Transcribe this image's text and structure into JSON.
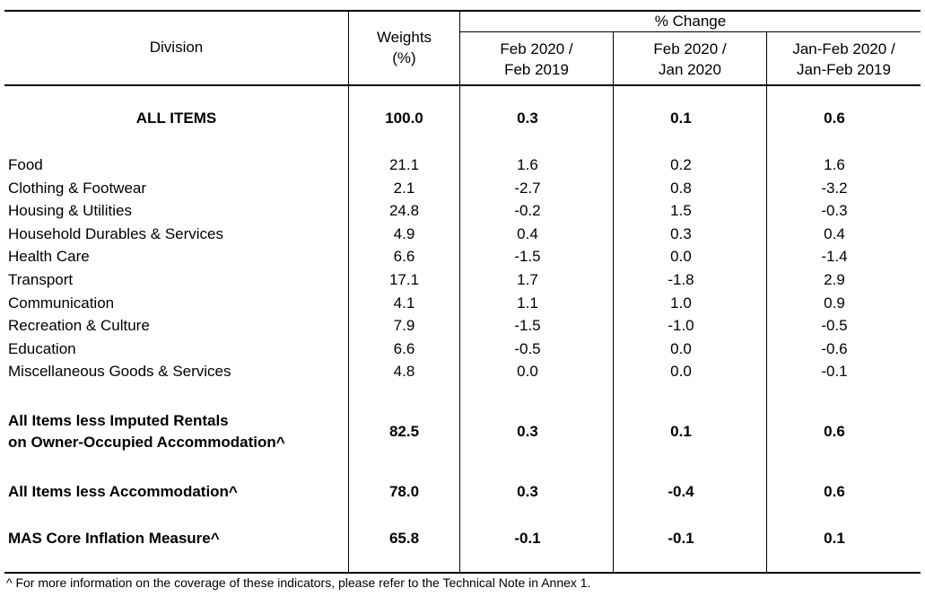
{
  "header": {
    "division": "Division",
    "weights_line1": "Weights",
    "weights_line2": "(%)",
    "pct_change": "% Change",
    "col1_line1": "Feb 2020 /",
    "col1_line2": "Feb 2019",
    "col2_line1": "Feb 2020 /",
    "col2_line2": "Jan 2020",
    "col3_line1": "Jan-Feb 2020 /",
    "col3_line2": "Jan-Feb 2019"
  },
  "all_items": {
    "label": "ALL ITEMS",
    "weight": "100.0",
    "v1": "0.3",
    "v2": "0.1",
    "v3": "0.6"
  },
  "rows": [
    {
      "label": "Food",
      "weight": "21.1",
      "v1": "1.6",
      "v2": "0.2",
      "v3": "1.6"
    },
    {
      "label": "Clothing & Footwear",
      "weight": "2.1",
      "v1": "-2.7",
      "v2": "0.8",
      "v3": "-3.2"
    },
    {
      "label": "Housing & Utilities",
      "weight": "24.8",
      "v1": "-0.2",
      "v2": "1.5",
      "v3": "-0.3"
    },
    {
      "label": "Household Durables & Services",
      "weight": "4.9",
      "v1": "0.4",
      "v2": "0.3",
      "v3": "0.4"
    },
    {
      "label": "Health Care",
      "weight": "6.6",
      "v1": "-1.5",
      "v2": "0.0",
      "v3": "-1.4"
    },
    {
      "label": "Transport",
      "weight": "17.1",
      "v1": "1.7",
      "v2": "-1.8",
      "v3": "2.9"
    },
    {
      "label": "Communication",
      "weight": "4.1",
      "v1": "1.1",
      "v2": "1.0",
      "v3": "0.9"
    },
    {
      "label": "Recreation & Culture",
      "weight": "7.9",
      "v1": "-1.5",
      "v2": "-1.0",
      "v3": "-0.5"
    },
    {
      "label": "Education",
      "weight": "6.6",
      "v1": "-0.5",
      "v2": "0.0",
      "v3": "-0.6"
    },
    {
      "label": "Miscellaneous Goods & Services",
      "weight": "4.8",
      "v1": "0.0",
      "v2": "0.0",
      "v3": "-0.1"
    }
  ],
  "imputed": {
    "label_line1": "All Items less Imputed Rentals",
    "label_line2": "on Owner-Occupied Accommodation^",
    "weight": "82.5",
    "v1": "0.3",
    "v2": "0.1",
    "v3": "0.6"
  },
  "less_accom": {
    "label": "All Items less Accommodation^",
    "weight": "78.0",
    "v1": "0.3",
    "v2": "-0.4",
    "v3": "0.6"
  },
  "mas_core": {
    "label": "MAS Core Inflation Measure^",
    "weight": "65.8",
    "v1": "-0.1",
    "v2": "-0.1",
    "v3": "0.1"
  },
  "footnote": "^ For more information on the coverage of these indicators, please refer to the Technical Note in Annex 1."
}
